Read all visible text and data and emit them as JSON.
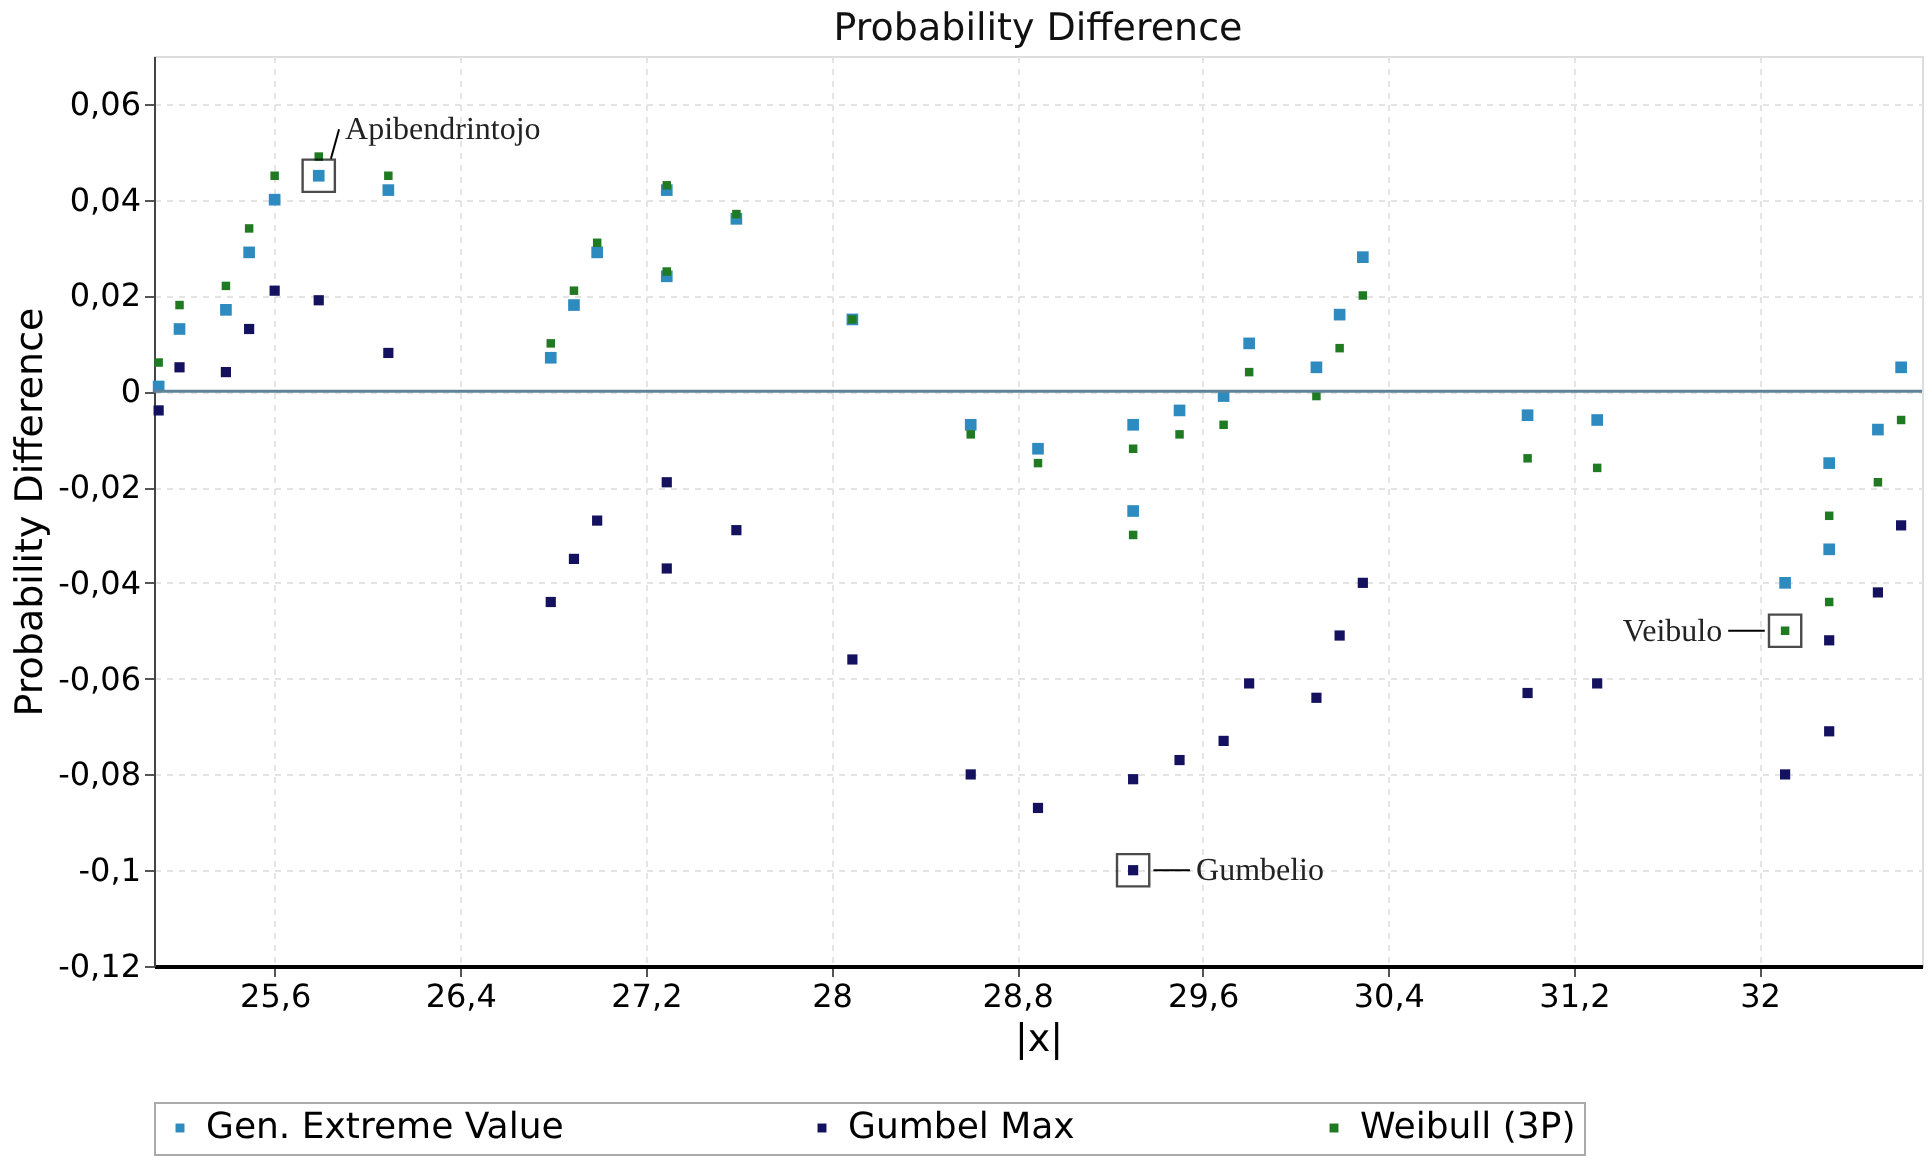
{
  "chart_data": {
    "type": "scatter",
    "title": "Probability Difference",
    "xlabel": "|x|",
    "ylabel": "Probability Difference",
    "xlim": [
      25.08,
      32.7
    ],
    "ylim": [
      -0.12,
      0.07
    ],
    "xticks": [
      {
        "value": 25.6,
        "label": "25,6"
      },
      {
        "value": 26.4,
        "label": "26,4"
      },
      {
        "value": 27.2,
        "label": "27,2"
      },
      28,
      {
        "value": 28.8,
        "label": "28,8"
      },
      {
        "value": 29.6,
        "label": "29,6"
      },
      {
        "value": 30.4,
        "label": "30,4"
      },
      {
        "value": 31.2,
        "label": "31,2"
      },
      32
    ],
    "yticks": [
      {
        "value": -0.12,
        "label": "-0,12"
      },
      {
        "value": -0.1,
        "label": "-0,1"
      },
      {
        "value": -0.08,
        "label": "-0,08"
      },
      {
        "value": -0.06,
        "label": "-0,06"
      },
      {
        "value": -0.04,
        "label": "-0,04"
      },
      {
        "value": -0.02,
        "label": "-0,02"
      },
      0,
      {
        "value": 0.02,
        "label": "0,02"
      },
      {
        "value": 0.04,
        "label": "0,04"
      },
      {
        "value": 0.06,
        "label": "0,06"
      }
    ],
    "grid": true,
    "legend": "bottom",
    "marker": "square",
    "ref_lines": [
      {
        "axis": "y",
        "value": 0,
        "color": "#5f8397"
      }
    ],
    "annotations": [
      {
        "text": "Apibendrintojo",
        "x": 25.79,
        "y": 0.045
      },
      {
        "text": "Gumbelio",
        "x": 29.3,
        "y": -0.1
      },
      {
        "text": "Veibulo",
        "x": 32.11,
        "y": -0.05
      }
    ],
    "series": [
      {
        "name": "Gen. Extreme Value",
        "color": "#2e8bbf",
        "x": [
          25.1,
          25.19,
          25.39,
          25.49,
          25.6,
          25.79,
          26.09,
          26.79,
          26.89,
          26.99,
          27.29,
          27.29,
          27.59,
          28.09,
          28.6,
          28.89,
          29.3,
          29.3,
          29.5,
          29.69,
          29.8,
          30.09,
          30.19,
          30.29,
          31.0,
          31.3,
          32.11,
          32.3,
          32.3,
          32.51,
          32.61
        ],
        "values": [
          0.001,
          0.013,
          0.017,
          0.029,
          0.04,
          0.045,
          0.042,
          0.007,
          0.018,
          0.029,
          0.042,
          0.024,
          0.036,
          0.015,
          -0.007,
          -0.012,
          -0.007,
          -0.025,
          -0.004,
          -0.001,
          0.01,
          0.005,
          0.016,
          0.028,
          -0.005,
          -0.006,
          -0.04,
          -0.015,
          -0.033,
          -0.008,
          0.005
        ]
      },
      {
        "name": "Gumbel Max",
        "color": "#14125e",
        "x": [
          25.1,
          25.19,
          25.39,
          25.49,
          25.6,
          25.79,
          26.09,
          26.79,
          26.89,
          26.99,
          27.29,
          27.29,
          27.59,
          28.09,
          28.6,
          28.89,
          29.3,
          29.3,
          29.5,
          29.69,
          29.8,
          30.09,
          30.19,
          30.29,
          31.0,
          31.3,
          32.11,
          32.3,
          32.3,
          32.51,
          32.61
        ],
        "values": [
          -0.004,
          0.005,
          0.004,
          0.013,
          0.021,
          0.019,
          0.008,
          -0.044,
          -0.035,
          -0.027,
          -0.019,
          -0.037,
          -0.029,
          -0.056,
          -0.08,
          -0.087,
          -0.081,
          -0.1,
          -0.077,
          -0.073,
          -0.061,
          -0.064,
          -0.051,
          -0.04,
          -0.063,
          -0.061,
          -0.08,
          -0.052,
          -0.071,
          -0.042,
          -0.028
        ]
      },
      {
        "name": "Weibull (3P)",
        "color": "#1f7a22",
        "x": [
          25.1,
          25.19,
          25.39,
          25.49,
          25.6,
          25.79,
          26.09,
          26.79,
          26.89,
          26.99,
          27.29,
          27.29,
          27.59,
          28.09,
          28.6,
          28.89,
          29.3,
          29.3,
          29.5,
          29.69,
          29.8,
          30.09,
          30.19,
          30.29,
          31.0,
          31.3,
          32.11,
          32.3,
          32.3,
          32.51,
          32.61
        ],
        "values": [
          0.006,
          0.018,
          0.022,
          0.034,
          0.045,
          0.049,
          0.045,
          0.01,
          0.021,
          0.031,
          0.043,
          0.025,
          0.037,
          0.015,
          -0.009,
          -0.015,
          -0.012,
          -0.03,
          -0.009,
          -0.007,
          0.004,
          -0.001,
          0.009,
          0.02,
          -0.014,
          -0.016,
          -0.05,
          -0.026,
          -0.044,
          -0.019,
          -0.006
        ]
      }
    ]
  }
}
